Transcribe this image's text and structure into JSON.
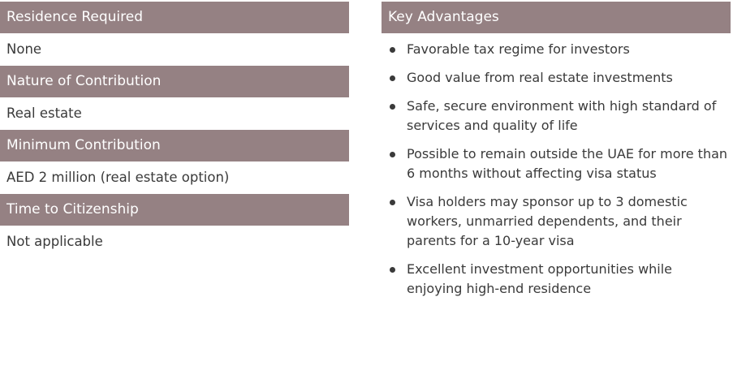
{
  "left": [
    {
      "heading": "Residence Required",
      "value": "None"
    },
    {
      "heading": "Nature of Contribution",
      "value": "Real estate"
    },
    {
      "heading": "Minimum Contribution",
      "value": "AED 2 million (real estate option)"
    },
    {
      "heading": "Time to Citizenship",
      "value": "Not applicable"
    }
  ],
  "right": {
    "heading": "Key Advantages",
    "items": [
      "Favorable tax regime for investors",
      "Good value from real estate investments",
      "Safe, secure environment with high standard of services and quality of life",
      "Possible to remain outside the UAE for more than 6 months without affecting visa status",
      "Visa holders may sponsor up to 3 domestic workers, unmarried dependents, and their parents for a 10-year visa",
      "Excellent investment opportunities while enjoying high-end residence"
    ]
  },
  "colors": {
    "header_bg": "#958183",
    "header_text": "#ffffff",
    "body_text": "#3a3a3a"
  }
}
